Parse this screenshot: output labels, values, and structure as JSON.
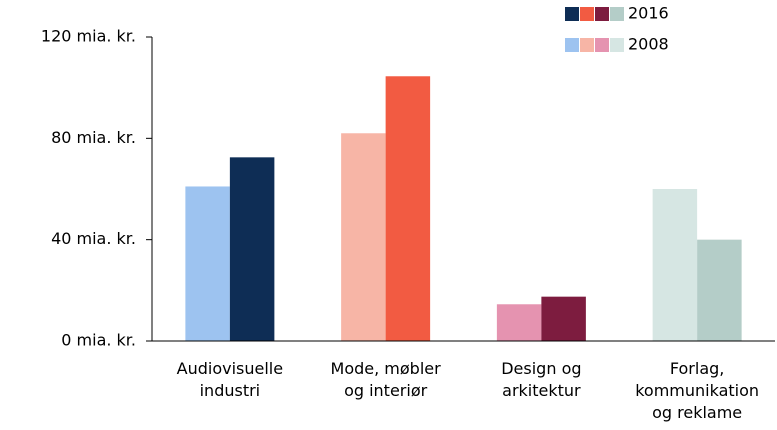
{
  "chart_data": {
    "type": "bar",
    "categories": [
      [
        "Audiovisuelle",
        "industri"
      ],
      [
        "Mode, møbler",
        "og interiør"
      ],
      [
        "Design og",
        "arkitektur"
      ],
      [
        "Forlag,",
        "kommunikation",
        "og reklame"
      ]
    ],
    "series": [
      {
        "name": "2008",
        "colors": [
          "#9dc3f0",
          "#f7b5a6",
          "#e593b0",
          "#d6e6e3"
        ],
        "values": [
          61,
          82,
          14.5,
          60
        ]
      },
      {
        "name": "2016",
        "colors": [
          "#0e2d55",
          "#f25b42",
          "#7d1c3f",
          "#b4cdc8"
        ],
        "values": [
          72.5,
          104.5,
          17.5,
          40
        ]
      }
    ],
    "ylim": [
      0,
      120
    ],
    "yticks": [
      {
        "value": 0,
        "label": "0 mia. kr."
      },
      {
        "value": 40,
        "label": "40 mia. kr."
      },
      {
        "value": 80,
        "label": "80 mia. kr."
      },
      {
        "value": 120,
        "label": "120 mia. kr."
      }
    ],
    "legend": "top-right"
  }
}
